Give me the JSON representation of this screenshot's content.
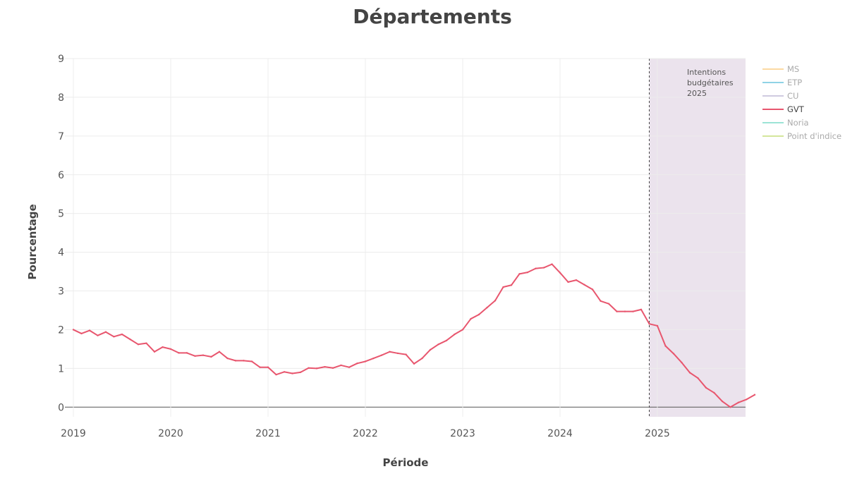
{
  "chart_data": {
    "type": "line",
    "title": "Départements",
    "xlabel": "Période",
    "ylabel": "Pourcentage",
    "ylim": [
      -0.25,
      9
    ],
    "xlim": [
      "2019-01",
      "2025-12"
    ],
    "y_ticks": [
      "0",
      "1",
      "2",
      "3",
      "4",
      "5",
      "6",
      "7",
      "8",
      "9"
    ],
    "x_ticks": [
      "2019",
      "2020",
      "2021",
      "2022",
      "2023",
      "2024",
      "2025"
    ],
    "grid": true,
    "legend_position": "top-right",
    "shaded_region": {
      "start": "2024-12",
      "end": "2025-12",
      "label_lines": [
        "Intentions",
        "budgétaires",
        "2025"
      ],
      "color": "#ebe3ed"
    },
    "legend": [
      {
        "name": "MS",
        "color": "#fbd9a2",
        "active": false
      },
      {
        "name": "ETP",
        "color": "#8fd3e6",
        "active": false
      },
      {
        "name": "CU",
        "color": "#cfcbe0",
        "active": false
      },
      {
        "name": "GVT",
        "color": "#e8566e",
        "active": true
      },
      {
        "name": "Noria",
        "color": "#9ce4d6",
        "active": false
      },
      {
        "name": "Point d'indice",
        "color": "#d4e69c",
        "active": false
      }
    ],
    "series": [
      {
        "name": "GVT",
        "color": "#e8566e",
        "x_start": "2019-01",
        "values": [
          2.0,
          1.9,
          1.98,
          1.85,
          1.94,
          1.82,
          1.88,
          1.75,
          1.62,
          1.65,
          1.43,
          1.55,
          1.5,
          1.4,
          1.4,
          1.32,
          1.34,
          1.3,
          1.43,
          1.26,
          1.2,
          1.2,
          1.18,
          1.03,
          1.03,
          0.84,
          0.91,
          0.87,
          0.9,
          1.01,
          1.0,
          1.04,
          1.01,
          1.08,
          1.03,
          1.13,
          1.18,
          1.26,
          1.34,
          1.43,
          1.39,
          1.36,
          1.12,
          1.26,
          1.48,
          1.62,
          1.72,
          1.88,
          2.0,
          2.28,
          2.39,
          2.57,
          2.75,
          3.1,
          3.15,
          3.44,
          3.48,
          3.58,
          3.6,
          3.69,
          3.47,
          3.23,
          3.28,
          3.16,
          3.04,
          2.74,
          2.67,
          2.47,
          2.47,
          2.47,
          2.52,
          2.15,
          2.1,
          1.58,
          1.38,
          1.15,
          0.89,
          0.75,
          0.5,
          0.37,
          0.15,
          0.0,
          0.12,
          0.2,
          0.32
        ]
      }
    ]
  }
}
